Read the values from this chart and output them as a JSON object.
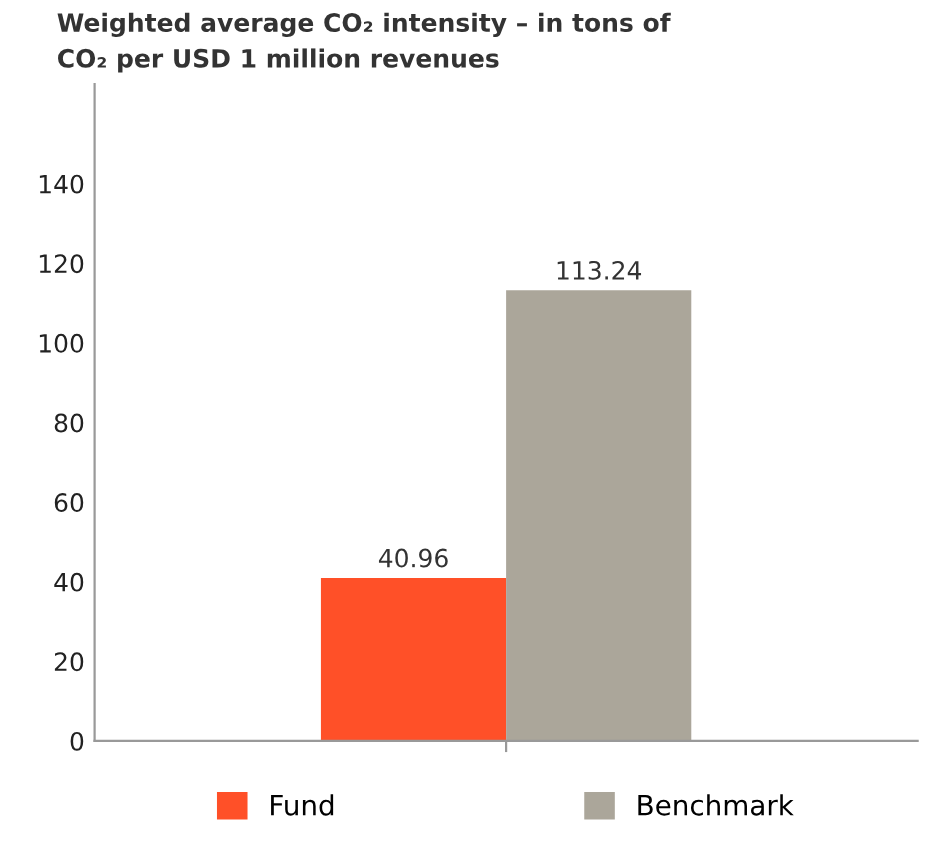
{
  "chart_data": {
    "type": "bar",
    "title": "Weighted average CO₂ intensity – in tons of\nCO₂ per USD 1 million revenues",
    "categories": [
      null
    ],
    "series": [
      {
        "name": "Fund",
        "color": "#ff5028",
        "values": [
          40.96
        ]
      },
      {
        "name": "Benchmark",
        "color": "#aba69a",
        "values": [
          113.24
        ]
      }
    ],
    "ylim": [
      0,
      165
    ],
    "yticks": [
      0,
      20,
      40,
      60,
      80,
      100,
      120,
      140
    ],
    "grid": false,
    "legend": "bottom",
    "data_labels": true
  }
}
